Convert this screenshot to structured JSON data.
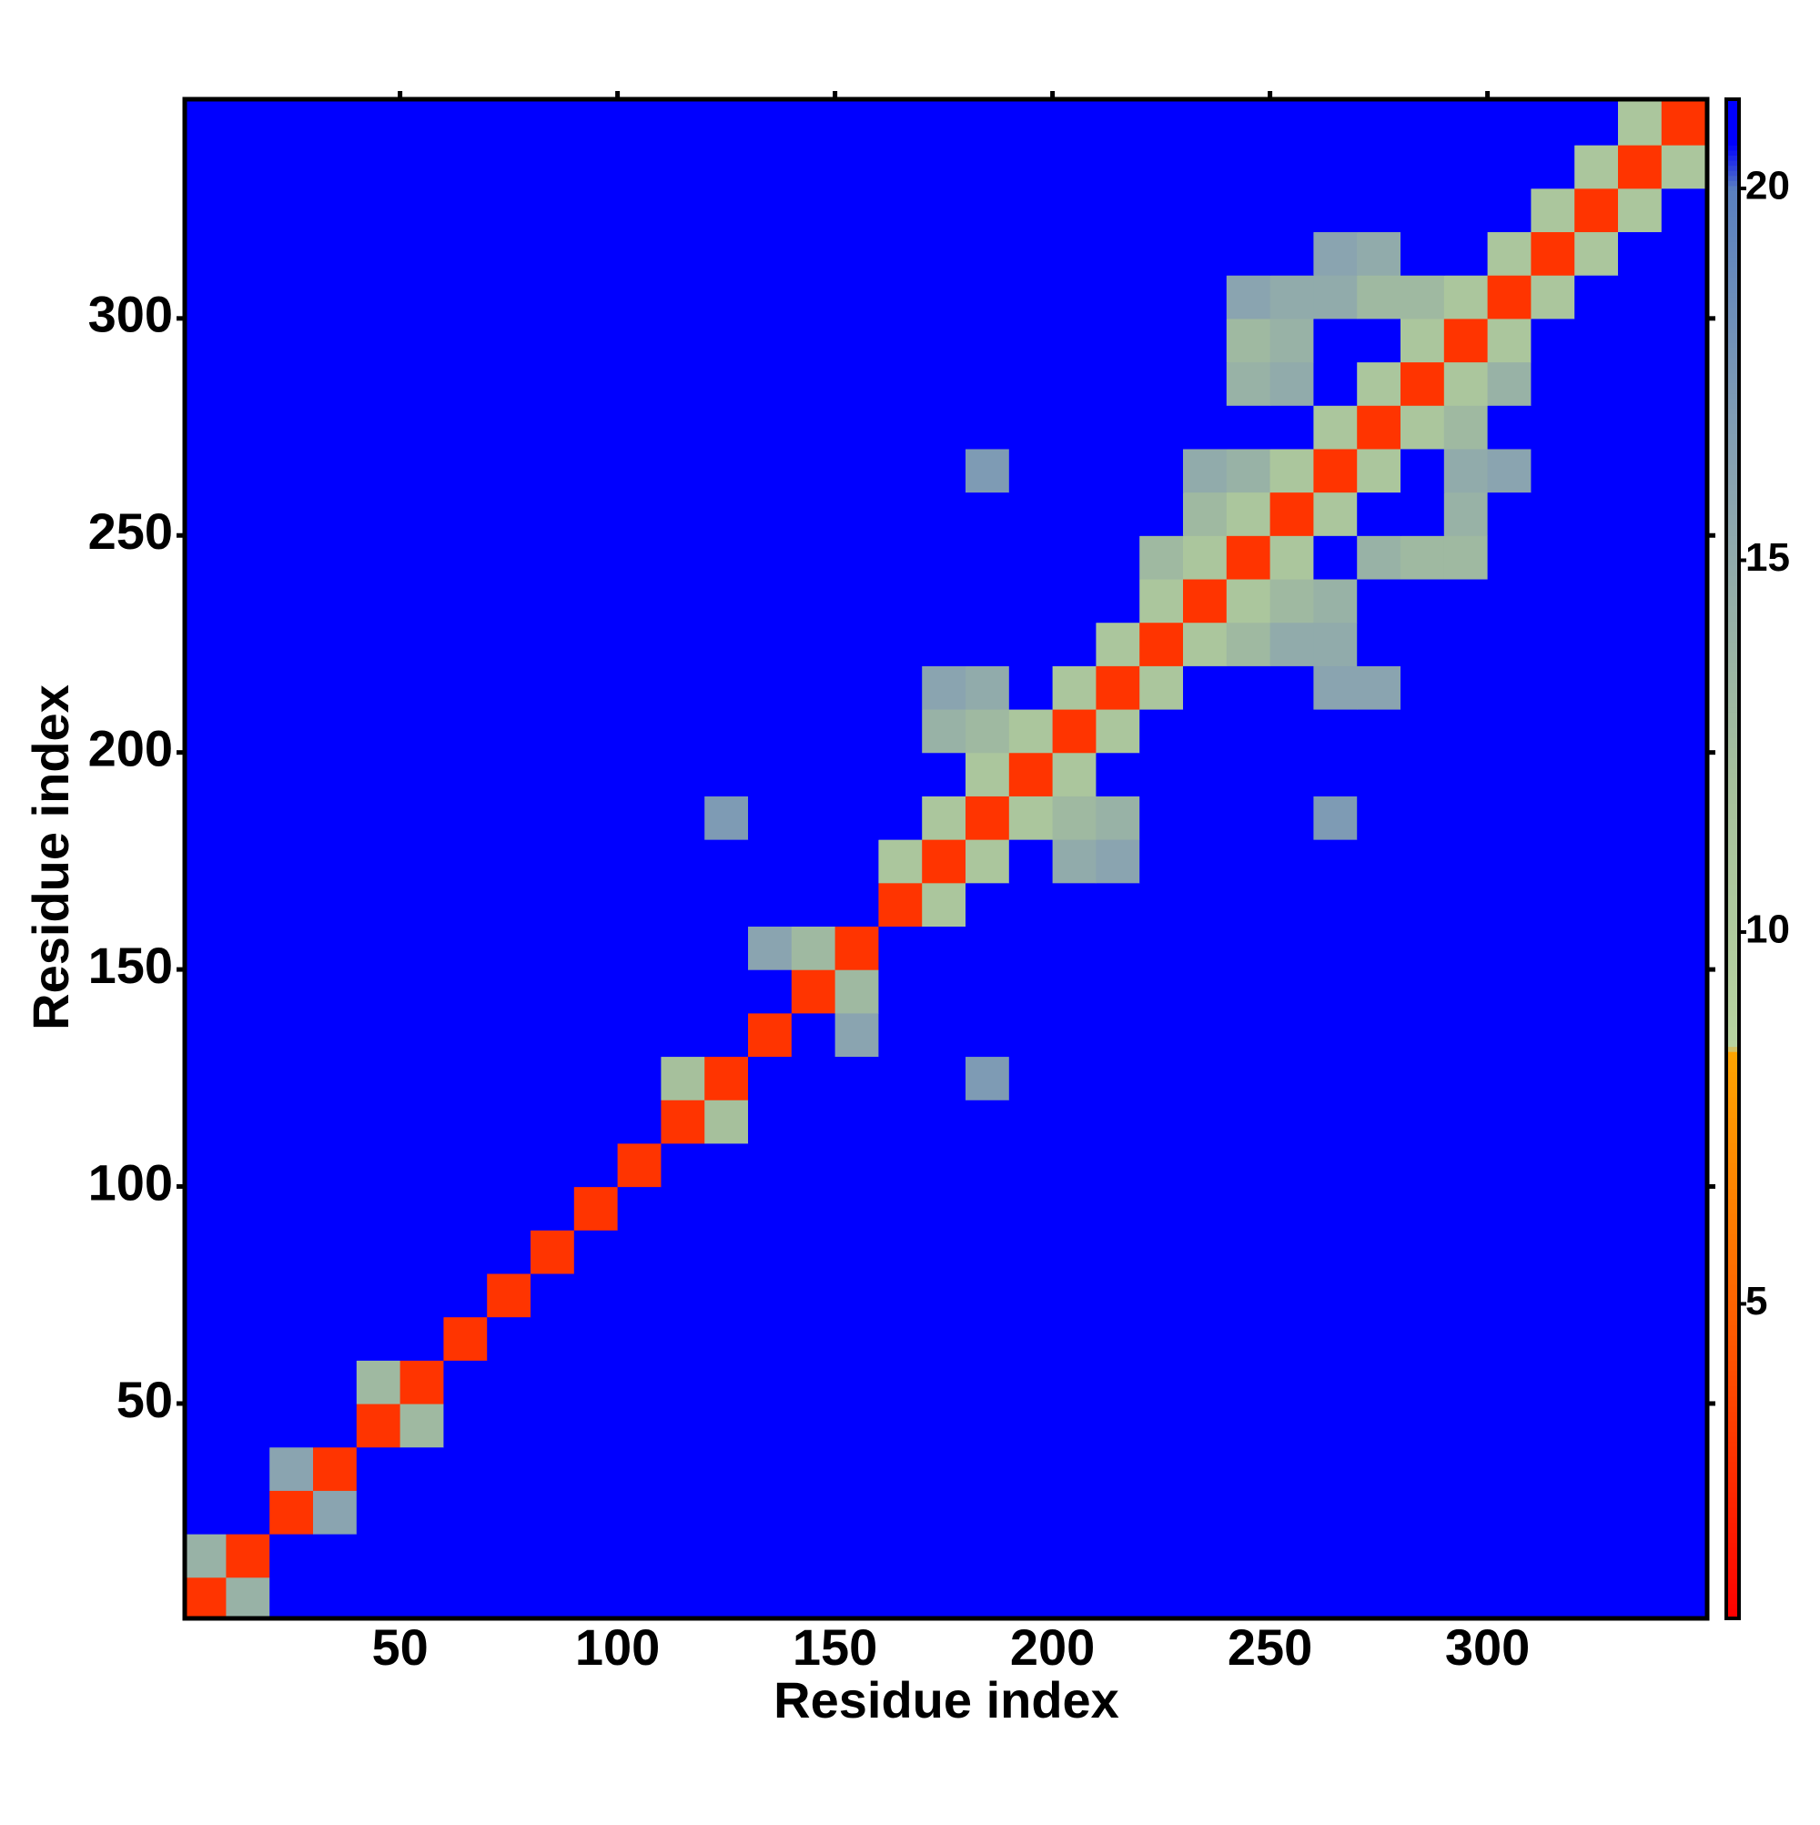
{
  "chart_data": {
    "type": "heatmap",
    "xlabel": "Residue index",
    "ylabel": "Residue index",
    "xlim": [
      0.5,
      350.5
    ],
    "ylim": [
      0.5,
      350.5
    ],
    "xticks": [
      50,
      100,
      150,
      200,
      250,
      300
    ],
    "yticks": [
      50,
      100,
      150,
      200,
      250,
      300
    ],
    "xbins": [
      0,
      10,
      20,
      30,
      40,
      50,
      60,
      70,
      80,
      90,
      100,
      110,
      120,
      130,
      140,
      150,
      160,
      170,
      180,
      190,
      200,
      210,
      220,
      230,
      240,
      250,
      260,
      270,
      280,
      290,
      300,
      310,
      320,
      330,
      340,
      350
    ],
    "ybins": [
      0,
      10,
      20,
      30,
      40,
      50,
      60,
      70,
      80,
      90,
      100,
      110,
      120,
      130,
      140,
      150,
      160,
      170,
      180,
      190,
      200,
      210,
      220,
      230,
      240,
      250,
      260,
      270,
      280,
      290,
      300,
      310,
      320,
      330,
      340,
      350
    ],
    "clim": [
      0.77,
      21.2
    ],
    "cticks": [
      5,
      10,
      15,
      20
    ],
    "colorscale": [
      [
        0.77,
        "#ff0000"
      ],
      [
        6,
        "#ff7a00"
      ],
      [
        8.4,
        "#ffa500"
      ],
      [
        8.45,
        "#b8d4a0"
      ],
      [
        12,
        "#a6c09c"
      ],
      [
        16,
        "#8aa4b0"
      ],
      [
        20,
        "#5a80c0"
      ],
      [
        20.6,
        "#0000ff"
      ],
      [
        21.2,
        "#0000ff"
      ]
    ],
    "z": [
      [
        3,
        14,
        21,
        21,
        21,
        21,
        21,
        21,
        21,
        21,
        21,
        21,
        21,
        21,
        21,
        21,
        21,
        21,
        21,
        21,
        21,
        21,
        21,
        21,
        21,
        21,
        21,
        21,
        21,
        21,
        21,
        21,
        21,
        21,
        21
      ],
      [
        14,
        3,
        21,
        21,
        21,
        21,
        21,
        21,
        21,
        21,
        21,
        21,
        21,
        21,
        21,
        21,
        21,
        21,
        21,
        21,
        21,
        21,
        21,
        21,
        21,
        21,
        21,
        21,
        21,
        21,
        21,
        21,
        21,
        21,
        21
      ],
      [
        21,
        21,
        3,
        16,
        21,
        21,
        21,
        21,
        21,
        21,
        21,
        21,
        21,
        21,
        21,
        21,
        21,
        21,
        21,
        21,
        21,
        21,
        21,
        21,
        21,
        21,
        21,
        21,
        21,
        21,
        21,
        21,
        21,
        21,
        21
      ],
      [
        21,
        21,
        16,
        3,
        21,
        21,
        21,
        21,
        21,
        21,
        21,
        21,
        21,
        21,
        21,
        21,
        21,
        21,
        21,
        21,
        21,
        21,
        21,
        21,
        21,
        21,
        21,
        21,
        21,
        21,
        21,
        21,
        21,
        21,
        21
      ],
      [
        21,
        21,
        21,
        21,
        3,
        13,
        21,
        21,
        21,
        21,
        21,
        21,
        21,
        21,
        21,
        21,
        21,
        21,
        21,
        21,
        21,
        21,
        21,
        21,
        21,
        21,
        21,
        21,
        21,
        21,
        21,
        21,
        21,
        21,
        21
      ],
      [
        21,
        21,
        21,
        21,
        13,
        3,
        21,
        21,
        21,
        21,
        21,
        21,
        21,
        21,
        21,
        21,
        21,
        21,
        21,
        21,
        21,
        21,
        21,
        21,
        21,
        21,
        21,
        21,
        21,
        21,
        21,
        21,
        21,
        21,
        21
      ],
      [
        21,
        21,
        21,
        21,
        21,
        21,
        3,
        21,
        21,
        21,
        21,
        21,
        21,
        21,
        21,
        21,
        21,
        21,
        21,
        21,
        21,
        21,
        21,
        21,
        21,
        21,
        21,
        21,
        21,
        21,
        21,
        21,
        21,
        21,
        21
      ],
      [
        21,
        21,
        21,
        21,
        21,
        21,
        21,
        3,
        21,
        21,
        21,
        21,
        21,
        21,
        21,
        21,
        21,
        21,
        21,
        21,
        21,
        21,
        21,
        21,
        21,
        21,
        21,
        21,
        21,
        21,
        21,
        21,
        21,
        21,
        21
      ],
      [
        21,
        21,
        21,
        21,
        21,
        21,
        21,
        21,
        3,
        21,
        21,
        21,
        21,
        21,
        21,
        21,
        21,
        21,
        21,
        21,
        21,
        21,
        21,
        21,
        21,
        21,
        21,
        21,
        21,
        21,
        21,
        21,
        21,
        21,
        21
      ],
      [
        21,
        21,
        21,
        21,
        21,
        21,
        21,
        21,
        21,
        3,
        21,
        21,
        21,
        21,
        21,
        21,
        21,
        21,
        21,
        21,
        21,
        21,
        21,
        21,
        21,
        21,
        21,
        21,
        21,
        21,
        21,
        21,
        21,
        21,
        21
      ],
      [
        21,
        21,
        21,
        21,
        21,
        21,
        21,
        21,
        21,
        21,
        3,
        21,
        21,
        21,
        21,
        21,
        21,
        21,
        21,
        21,
        21,
        21,
        21,
        21,
        21,
        21,
        21,
        21,
        21,
        21,
        21,
        21,
        21,
        21,
        21
      ],
      [
        21,
        21,
        21,
        21,
        21,
        21,
        21,
        21,
        21,
        21,
        21,
        3,
        12,
        21,
        21,
        21,
        21,
        21,
        21,
        21,
        21,
        21,
        21,
        21,
        21,
        21,
        21,
        21,
        21,
        21,
        21,
        21,
        21,
        21,
        21
      ],
      [
        21,
        21,
        21,
        21,
        21,
        21,
        21,
        21,
        21,
        21,
        21,
        12,
        3,
        21,
        21,
        21,
        21,
        21,
        17,
        21,
        21,
        21,
        21,
        21,
        21,
        21,
        21,
        21,
        21,
        21,
        21,
        21,
        21,
        21,
        21
      ],
      [
        21,
        21,
        21,
        21,
        21,
        21,
        21,
        21,
        21,
        21,
        21,
        21,
        21,
        3,
        21,
        16,
        21,
        21,
        21,
        21,
        21,
        21,
        21,
        21,
        21,
        21,
        21,
        21,
        21,
        21,
        21,
        21,
        21,
        21,
        21
      ],
      [
        21,
        21,
        21,
        21,
        21,
        21,
        21,
        21,
        21,
        21,
        21,
        21,
        21,
        21,
        3,
        13,
        21,
        21,
        21,
        21,
        21,
        21,
        21,
        21,
        21,
        21,
        21,
        21,
        21,
        21,
        21,
        21,
        21,
        21,
        21
      ],
      [
        21,
        21,
        21,
        21,
        21,
        21,
        21,
        21,
        21,
        21,
        21,
        21,
        21,
        16,
        13,
        3,
        21,
        21,
        21,
        21,
        21,
        21,
        21,
        21,
        21,
        21,
        21,
        21,
        21,
        21,
        21,
        21,
        21,
        21,
        21
      ],
      [
        21,
        21,
        21,
        21,
        21,
        21,
        21,
        21,
        21,
        21,
        21,
        21,
        21,
        21,
        21,
        21,
        3,
        11,
        21,
        21,
        21,
        21,
        21,
        21,
        21,
        21,
        21,
        21,
        21,
        21,
        21,
        21,
        21,
        21,
        21
      ],
      [
        21,
        21,
        21,
        21,
        21,
        21,
        21,
        21,
        21,
        21,
        21,
        21,
        21,
        21,
        21,
        21,
        11,
        3,
        11,
        21,
        15,
        16,
        21,
        21,
        21,
        21,
        21,
        21,
        21,
        21,
        21,
        21,
        21,
        21,
        21
      ],
      [
        21,
        21,
        21,
        21,
        21,
        21,
        21,
        21,
        21,
        21,
        21,
        21,
        17,
        21,
        21,
        21,
        21,
        11,
        3,
        11,
        13,
        14,
        21,
        21,
        21,
        21,
        17,
        21,
        21,
        21,
        21,
        21,
        21,
        21,
        21
      ],
      [
        21,
        21,
        21,
        21,
        21,
        21,
        21,
        21,
        21,
        21,
        21,
        21,
        21,
        21,
        21,
        21,
        21,
        21,
        11,
        3,
        11,
        21,
        21,
        21,
        21,
        21,
        21,
        21,
        21,
        21,
        21,
        21,
        21,
        21,
        21
      ],
      [
        21,
        21,
        21,
        21,
        21,
        21,
        21,
        21,
        21,
        21,
        21,
        21,
        21,
        21,
        21,
        21,
        21,
        14,
        13,
        11,
        3,
        11,
        21,
        21,
        21,
        21,
        21,
        21,
        21,
        21,
        21,
        21,
        21,
        21,
        21
      ],
      [
        21,
        21,
        21,
        21,
        21,
        21,
        21,
        21,
        21,
        21,
        21,
        21,
        21,
        21,
        21,
        21,
        21,
        16,
        15,
        21,
        11,
        3,
        11,
        21,
        21,
        21,
        16,
        16,
        21,
        21,
        21,
        21,
        21,
        21,
        21
      ],
      [
        21,
        21,
        21,
        21,
        21,
        21,
        21,
        21,
        21,
        21,
        21,
        21,
        21,
        21,
        21,
        21,
        21,
        21,
        21,
        21,
        21,
        11,
        3,
        11,
        13,
        15,
        15,
        21,
        21,
        21,
        21,
        21,
        21,
        21,
        21
      ],
      [
        21,
        21,
        21,
        21,
        21,
        21,
        21,
        21,
        21,
        21,
        21,
        21,
        21,
        21,
        21,
        21,
        21,
        21,
        21,
        21,
        21,
        21,
        11,
        3,
        11,
        13,
        14,
        21,
        21,
        21,
        21,
        21,
        21,
        21,
        21
      ],
      [
        21,
        21,
        21,
        21,
        21,
        21,
        21,
        21,
        21,
        21,
        21,
        21,
        21,
        21,
        21,
        21,
        21,
        21,
        21,
        21,
        21,
        21,
        13,
        11,
        3,
        11,
        21,
        14,
        13,
        13,
        21,
        21,
        21,
        21,
        21
      ],
      [
        21,
        21,
        21,
        21,
        21,
        21,
        21,
        21,
        21,
        21,
        21,
        21,
        21,
        21,
        21,
        21,
        21,
        21,
        21,
        21,
        21,
        21,
        21,
        13,
        11,
        3,
        11,
        21,
        21,
        14,
        21,
        21,
        21,
        21,
        21
      ],
      [
        21,
        21,
        21,
        21,
        21,
        21,
        21,
        21,
        21,
        21,
        21,
        21,
        21,
        21,
        21,
        21,
        21,
        21,
        17,
        21,
        21,
        21,
        21,
        15,
        14,
        11,
        3,
        11,
        21,
        15,
        16,
        21,
        21,
        21,
        21
      ],
      [
        21,
        21,
        21,
        21,
        21,
        21,
        21,
        21,
        21,
        21,
        21,
        21,
        21,
        21,
        21,
        21,
        21,
        21,
        21,
        21,
        21,
        21,
        21,
        21,
        21,
        21,
        11,
        3,
        11,
        13,
        21,
        21,
        21,
        21,
        21
      ],
      [
        21,
        21,
        21,
        21,
        21,
        21,
        21,
        21,
        21,
        21,
        21,
        21,
        21,
        21,
        21,
        21,
        21,
        21,
        21,
        21,
        21,
        21,
        21,
        21,
        14,
        15,
        21,
        11,
        3,
        11,
        14,
        21,
        21,
        21,
        21
      ],
      [
        21,
        21,
        21,
        21,
        21,
        21,
        21,
        21,
        21,
        21,
        21,
        21,
        21,
        21,
        21,
        21,
        21,
        21,
        21,
        21,
        21,
        21,
        21,
        21,
        13,
        14,
        21,
        21,
        11,
        3,
        11,
        21,
        21,
        21,
        21
      ],
      [
        21,
        21,
        21,
        21,
        21,
        21,
        21,
        21,
        21,
        21,
        21,
        21,
        21,
        21,
        21,
        21,
        21,
        21,
        21,
        21,
        21,
        21,
        21,
        21,
        16,
        15,
        15,
        13,
        13,
        11,
        3,
        11,
        21,
        21,
        21
      ],
      [
        21,
        21,
        21,
        21,
        21,
        21,
        21,
        21,
        21,
        21,
        21,
        21,
        21,
        21,
        21,
        21,
        21,
        21,
        21,
        21,
        21,
        21,
        21,
        21,
        21,
        21,
        16,
        15,
        21,
        21,
        11,
        3,
        11,
        21,
        21
      ],
      [
        21,
        21,
        21,
        21,
        21,
        21,
        21,
        21,
        21,
        21,
        21,
        21,
        21,
        21,
        21,
        21,
        21,
        21,
        21,
        21,
        21,
        21,
        21,
        21,
        21,
        21,
        21,
        21,
        21,
        21,
        21,
        11,
        3,
        11,
        21
      ],
      [
        21,
        21,
        21,
        21,
        21,
        21,
        21,
        21,
        21,
        21,
        21,
        21,
        21,
        21,
        21,
        21,
        21,
        21,
        21,
        21,
        21,
        21,
        21,
        21,
        21,
        21,
        21,
        21,
        21,
        21,
        21,
        21,
        11,
        3,
        11
      ],
      [
        21,
        21,
        21,
        21,
        21,
        21,
        21,
        21,
        21,
        21,
        21,
        21,
        21,
        21,
        21,
        21,
        21,
        21,
        21,
        21,
        21,
        21,
        21,
        21,
        21,
        21,
        21,
        21,
        21,
        21,
        21,
        21,
        21,
        11,
        3
      ]
    ]
  }
}
